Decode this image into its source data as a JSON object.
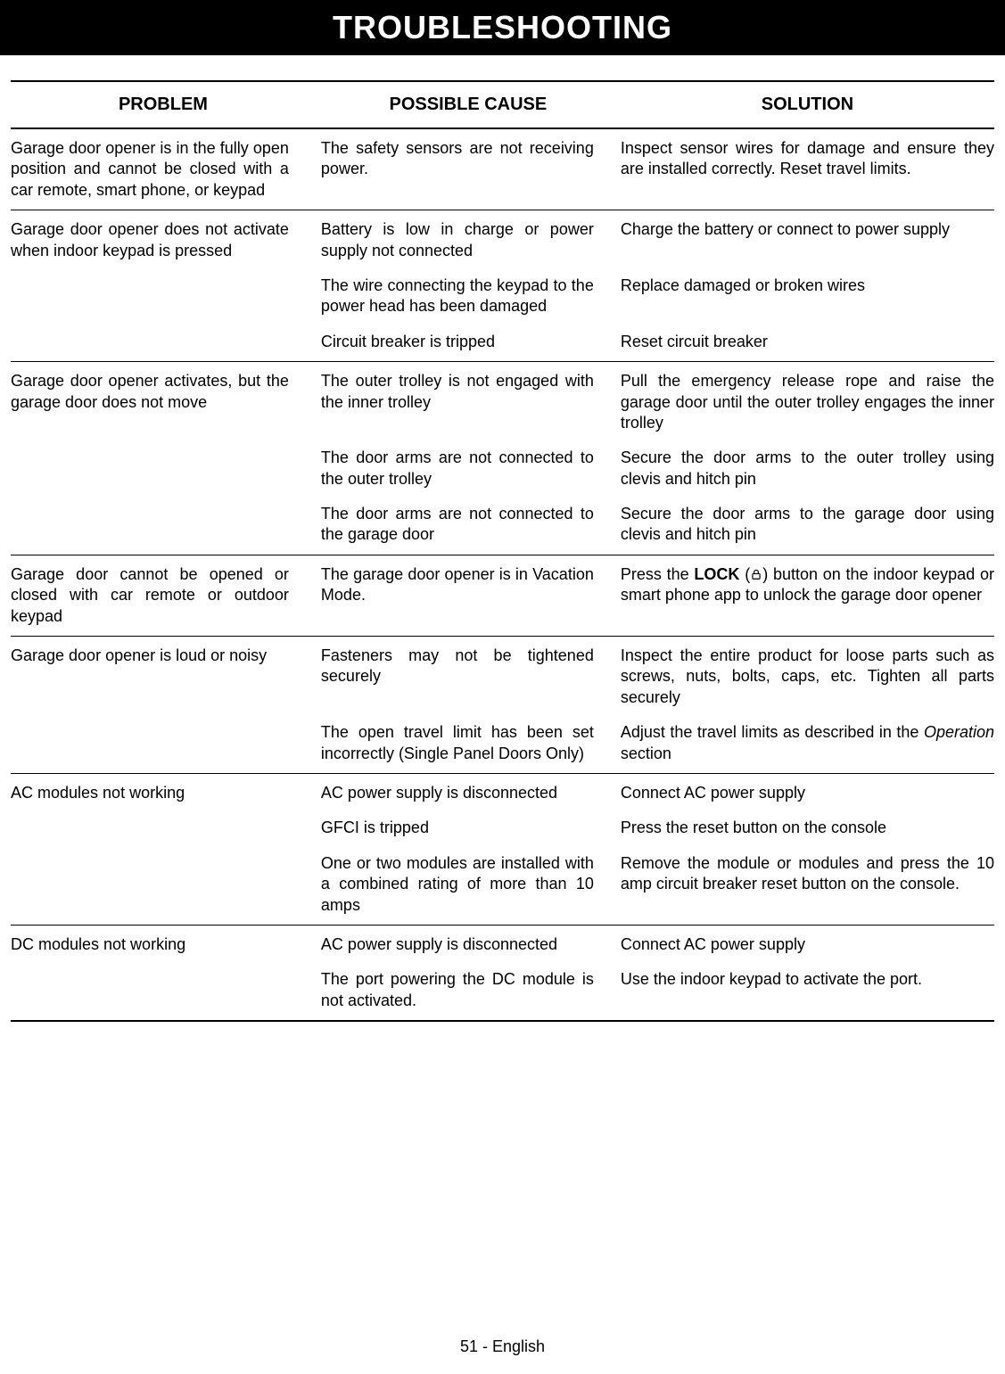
{
  "title": "TROUBLESHOOTING",
  "columns": [
    "PROBLEM",
    "POSSIBLE CAUSE",
    "SOLUTION"
  ],
  "footer": "51 - English",
  "colors": {
    "title_bg": "#000000",
    "title_fg": "#ffffff",
    "text": "#000000",
    "rule": "#000000"
  },
  "fonts": {
    "title_size": 36,
    "header_size": 20,
    "body_size": 18,
    "footer_size": 18
  },
  "rows": [
    {
      "problem": "Garage door opener is in the fully open position and cannot be closed with a car remote, smart phone, or keypad",
      "entries": [
        {
          "cause": "The safety sensors are not receiving power.",
          "solution": "Inspect sensor wires for damage and ensure they are installed correctly. Reset travel limits."
        }
      ]
    },
    {
      "problem": "Garage door opener does not activate when indoor keypad is pressed",
      "entries": [
        {
          "cause": "Battery is low in charge or power supply not connected",
          "solution": "Charge the battery or connect to power supply"
        },
        {
          "cause": "The wire connecting the keypad to the power head has been damaged",
          "solution": "Replace damaged or broken wires"
        },
        {
          "cause": "Circuit breaker is tripped",
          "solution": "Reset circuit breaker"
        }
      ]
    },
    {
      "problem": "Garage door opener activates, but the garage door does not move",
      "entries": [
        {
          "cause": "The outer trolley is not engaged with the inner trolley",
          "solution": "Pull the emergency release rope and raise the garage door until the outer trolley engages the inner trolley"
        },
        {
          "cause": "The door arms are not connected to the outer trolley",
          "solution": "Secure the door arms to the outer trolley using clevis and hitch pin"
        },
        {
          "cause": "The door arms are not connected to the garage door",
          "solution": "Secure the door arms to the garage door using clevis and hitch pin"
        }
      ]
    },
    {
      "problem": "Garage door cannot be opened or closed with car remote or outdoor keypad",
      "entries": [
        {
          "cause": "The garage door opener is in Vacation Mode.",
          "solution_html": true,
          "solution": "Press the <b>LOCK</b> (<span class=\"lock-icon\" data-name=\"lock-icon\" data-interactable=\"false\"><svg viewBox=\"0 0 24 24\"><rect x=\"5\" y=\"11\" width=\"14\" height=\"10\" rx=\"1.5\" fill=\"none\" stroke=\"#000\" stroke-width=\"2\"/><path d=\"M8 11 V8 a4 4 0 0 1 8 0 v3\" fill=\"none\" stroke=\"#000\" stroke-width=\"2\"/></svg></span>) button on the indoor keypad or smart phone app to unlock the garage door opener"
        }
      ]
    },
    {
      "problem": "Garage door opener is loud or noisy",
      "entries": [
        {
          "cause": "Fasteners may not be tightened securely",
          "solution": "Inspect the entire product for loose parts such as screws, nuts, bolts, caps, etc. Tighten all parts securely"
        },
        {
          "cause": "The open travel limit has been set incorrectly (Single Panel Doors Only)",
          "solution_html": true,
          "solution": "Adjust the travel limits as described in the <span class=\"italic\">Operation</span> section"
        }
      ]
    },
    {
      "problem": "AC modules not working",
      "entries": [
        {
          "cause": "AC power supply is disconnected",
          "solution": "Connect AC power supply"
        },
        {
          "cause": "GFCI is tripped",
          "solution": "Press the reset button on the console"
        },
        {
          "cause": "One or two modules are installed with a combined rating of more than 10 amps",
          "solution": "Remove the module or modules and press the 10 amp circuit breaker reset button on the console."
        }
      ]
    },
    {
      "problem": "DC modules not working",
      "entries": [
        {
          "cause": "AC power supply is disconnected",
          "solution": "Connect AC power supply"
        },
        {
          "cause": "The port powering the DC module is not activated.",
          "solution": "Use the indoor keypad to activate the port."
        }
      ]
    }
  ]
}
